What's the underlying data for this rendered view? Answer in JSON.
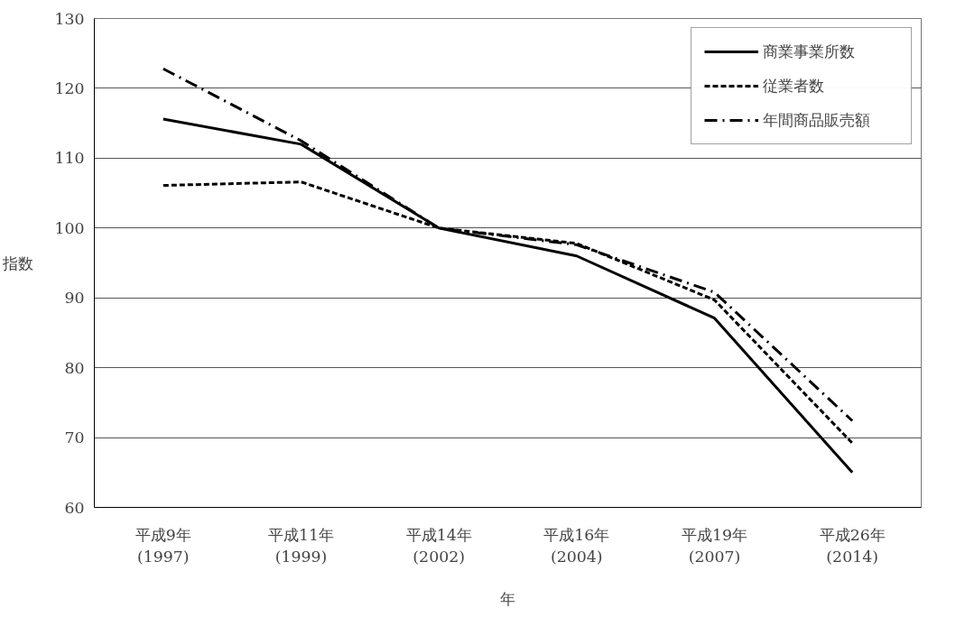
{
  "chart_data": {
    "type": "line",
    "xlabel": "年",
    "ylabel": "指数",
    "categories": [
      "平成9年\n(1997)",
      "平成11年\n(1999)",
      "平成14年\n(2002)",
      "平成16年\n(2004)",
      "平成19年\n(2007)",
      "平成26年\n(2014)"
    ],
    "series": [
      {
        "name": "商業事業所数",
        "color": "#000000",
        "line_style": "solid",
        "values": [
          115.6,
          112.0,
          100,
          96.0,
          87.1,
          65.0
        ]
      },
      {
        "name": "従業者数",
        "color": "#000000",
        "line_style": "dashed",
        "values": [
          106.1,
          106.6,
          100,
          97.8,
          89.7,
          69.2
        ]
      },
      {
        "name": "年間商品販売額",
        "color": "#000000",
        "line_style": "dashdot",
        "values": [
          122.8,
          112.5,
          100,
          97.6,
          90.8,
          72.4
        ]
      }
    ],
    "ylim": [
      60,
      130
    ],
    "yticks": [
      60,
      70,
      80,
      90,
      100,
      110,
      120,
      130
    ],
    "grid": "y",
    "legend": "top right",
    "marker": "none"
  }
}
